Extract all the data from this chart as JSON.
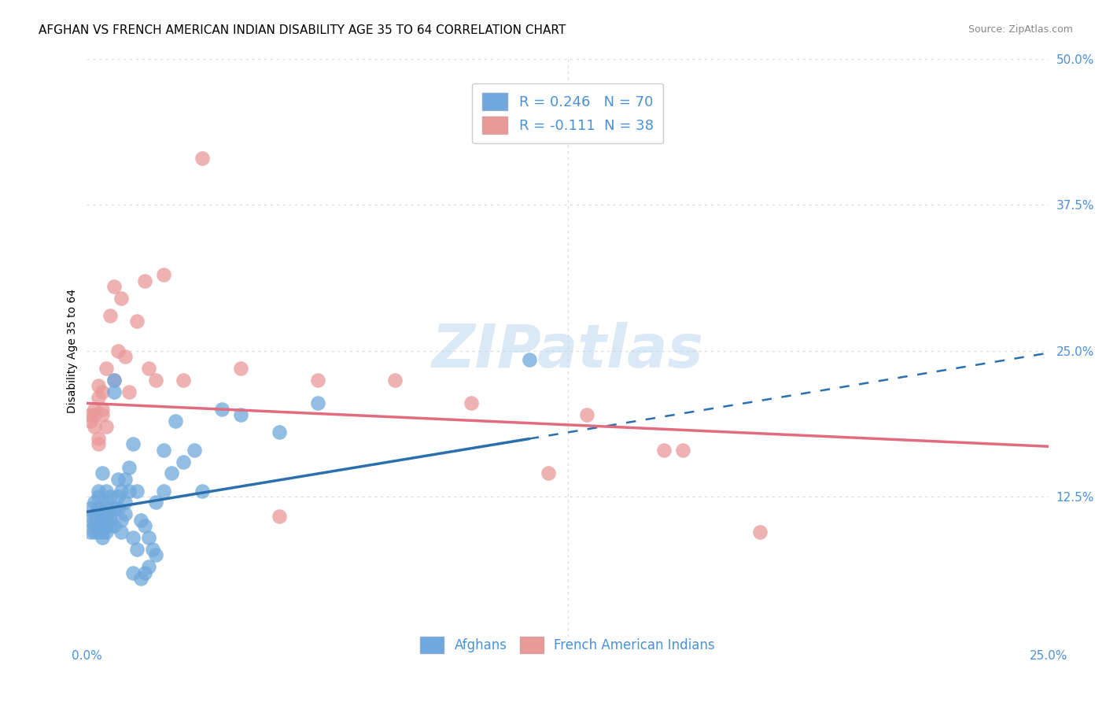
{
  "title": "AFGHAN VS FRENCH AMERICAN INDIAN DISABILITY AGE 35 TO 64 CORRELATION CHART",
  "source": "Source: ZipAtlas.com",
  "ylabel": "Disability Age 35 to 64",
  "x_min": 0.0,
  "x_max": 0.25,
  "y_min": 0.0,
  "y_max": 0.5,
  "x_ticks": [
    0.0,
    0.05,
    0.1,
    0.15,
    0.2,
    0.25
  ],
  "y_ticks": [
    0.0,
    0.125,
    0.25,
    0.375,
    0.5
  ],
  "x_tick_labels": [
    "0.0%",
    "",
    "",
    "",
    "",
    "25.0%"
  ],
  "y_tick_labels": [
    "",
    "12.5%",
    "25.0%",
    "37.5%",
    "50.0%"
  ],
  "blue_R": 0.246,
  "blue_N": 70,
  "pink_R": -0.111,
  "pink_N": 38,
  "blue_color": "#6fa8dc",
  "pink_color": "#ea9999",
  "blue_line_color": "#2c6fad",
  "pink_line_color": "#e06c7d",
  "blue_line_solid_end": 0.115,
  "blue_line_dash_start": 0.115,
  "legend_label_blue": "Afghans",
  "legend_label_pink": "French American Indians",
  "watermark": "ZIPatlas",
  "blue_line_x0": 0.0,
  "blue_line_y0": 0.112,
  "blue_line_x1": 0.25,
  "blue_line_y1": 0.248,
  "pink_line_x0": 0.0,
  "pink_line_x1": 0.25,
  "pink_line_y0": 0.205,
  "pink_line_y1": 0.168,
  "blue_scatter_x": [
    0.001,
    0.001,
    0.001,
    0.002,
    0.002,
    0.002,
    0.002,
    0.002,
    0.003,
    0.003,
    0.003,
    0.003,
    0.003,
    0.003,
    0.003,
    0.004,
    0.004,
    0.004,
    0.004,
    0.004,
    0.005,
    0.005,
    0.005,
    0.005,
    0.005,
    0.006,
    0.006,
    0.006,
    0.006,
    0.007,
    0.007,
    0.007,
    0.007,
    0.008,
    0.008,
    0.008,
    0.009,
    0.009,
    0.009,
    0.01,
    0.01,
    0.01,
    0.011,
    0.011,
    0.012,
    0.012,
    0.012,
    0.013,
    0.013,
    0.014,
    0.014,
    0.015,
    0.015,
    0.016,
    0.016,
    0.017,
    0.018,
    0.018,
    0.02,
    0.02,
    0.022,
    0.023,
    0.025,
    0.028,
    0.03,
    0.035,
    0.04,
    0.05,
    0.06,
    0.115
  ],
  "blue_scatter_y": [
    0.105,
    0.115,
    0.095,
    0.11,
    0.12,
    0.105,
    0.1,
    0.095,
    0.11,
    0.125,
    0.105,
    0.1,
    0.095,
    0.115,
    0.13,
    0.1,
    0.11,
    0.145,
    0.095,
    0.09,
    0.12,
    0.13,
    0.105,
    0.095,
    0.115,
    0.11,
    0.105,
    0.125,
    0.1,
    0.1,
    0.115,
    0.225,
    0.215,
    0.125,
    0.115,
    0.14,
    0.095,
    0.105,
    0.13,
    0.12,
    0.14,
    0.11,
    0.15,
    0.13,
    0.06,
    0.09,
    0.17,
    0.13,
    0.08,
    0.055,
    0.105,
    0.1,
    0.06,
    0.065,
    0.09,
    0.08,
    0.075,
    0.12,
    0.165,
    0.13,
    0.145,
    0.19,
    0.155,
    0.165,
    0.13,
    0.2,
    0.195,
    0.18,
    0.205,
    0.242
  ],
  "pink_scatter_x": [
    0.001,
    0.001,
    0.002,
    0.002,
    0.002,
    0.003,
    0.003,
    0.003,
    0.003,
    0.004,
    0.004,
    0.004,
    0.005,
    0.005,
    0.006,
    0.007,
    0.007,
    0.008,
    0.009,
    0.01,
    0.011,
    0.013,
    0.015,
    0.016,
    0.018,
    0.02,
    0.025,
    0.03,
    0.04,
    0.05,
    0.06,
    0.08,
    0.1,
    0.12,
    0.13,
    0.15,
    0.155,
    0.175
  ],
  "pink_scatter_y": [
    0.19,
    0.195,
    0.185,
    0.2,
    0.195,
    0.22,
    0.175,
    0.21,
    0.17,
    0.195,
    0.215,
    0.2,
    0.185,
    0.235,
    0.28,
    0.305,
    0.225,
    0.25,
    0.295,
    0.245,
    0.215,
    0.275,
    0.31,
    0.235,
    0.225,
    0.315,
    0.225,
    0.415,
    0.235,
    0.108,
    0.225,
    0.225,
    0.205,
    0.145,
    0.195,
    0.165,
    0.165,
    0.095
  ],
  "grid_color": "#d9d9d9",
  "background_color": "#ffffff",
  "title_fontsize": 11,
  "axis_label_fontsize": 10,
  "tick_fontsize": 11,
  "source_fontsize": 9
}
